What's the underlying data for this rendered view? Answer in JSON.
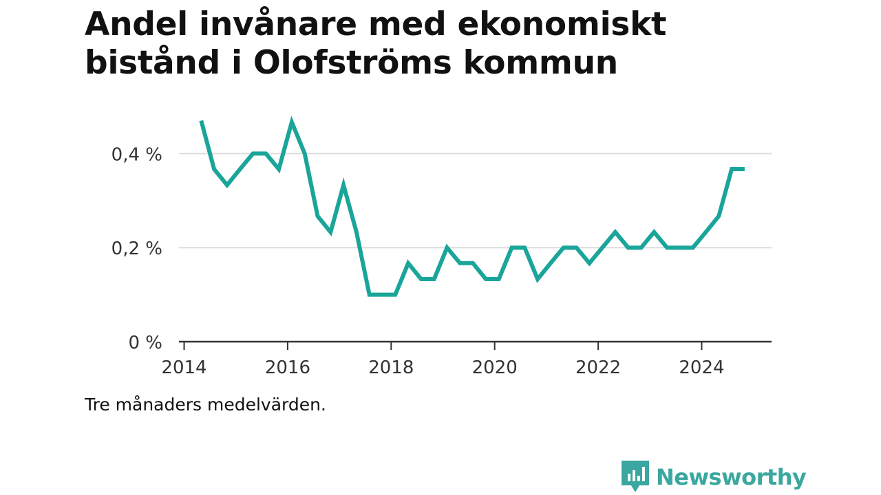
{
  "title_line1": "Andel invånare med ekonomiskt",
  "title_line2": "bistånd i Olofströms kommun",
  "note": "Tre månaders medelvärden.",
  "brand": "Newsworthy",
  "colors": {
    "line": "#1aa59a",
    "grid": "#dddddd",
    "axis": "#333333",
    "brand": "#3aa8a0"
  },
  "chart_data": {
    "type": "line",
    "title": "Andel invånare med ekonomiskt bistånd i Olofströms kommun",
    "xlabel": "",
    "ylabel": "",
    "xlim": [
      2013.9,
      2025.35
    ],
    "ylim": [
      0,
      0.5
    ],
    "x_ticks": [
      2014,
      2016,
      2018,
      2020,
      2022,
      2024
    ],
    "y_ticks": [
      {
        "value": 0,
        "label": "0 %"
      },
      {
        "value": 0.2,
        "label": "0,2 %"
      },
      {
        "value": 0.4,
        "label": "0,4 %"
      }
    ],
    "grid": "horizontal",
    "series": [
      {
        "x": [
          2014.33,
          2014.58,
          2014.83,
          2015.08,
          2015.33,
          2015.58,
          2015.83,
          2016.08,
          2016.33,
          2016.58,
          2016.83,
          2017.08,
          2017.33,
          2017.58,
          2017.83,
          2018.08,
          2018.33,
          2018.58,
          2018.83,
          2019.08,
          2019.33,
          2019.58,
          2019.83,
          2020.08,
          2020.33,
          2020.58,
          2020.83,
          2021.08,
          2021.33,
          2021.58,
          2021.83,
          2022.08,
          2022.33,
          2022.58,
          2022.83,
          2023.08,
          2023.33,
          2023.58,
          2023.83,
          2024.08,
          2024.33,
          2024.58,
          2024.83
        ],
        "values": [
          0.47,
          0.367,
          0.333,
          0.367,
          0.4,
          0.4,
          0.367,
          0.467,
          0.4,
          0.267,
          0.233,
          0.333,
          0.233,
          0.1,
          0.1,
          0.1,
          0.167,
          0.133,
          0.133,
          0.2,
          0.167,
          0.167,
          0.133,
          0.133,
          0.2,
          0.2,
          0.133,
          0.167,
          0.2,
          0.2,
          0.167,
          0.2,
          0.233,
          0.2,
          0.2,
          0.233,
          0.2,
          0.2,
          0.2,
          0.233,
          0.267,
          0.367,
          0.367
        ]
      }
    ]
  }
}
